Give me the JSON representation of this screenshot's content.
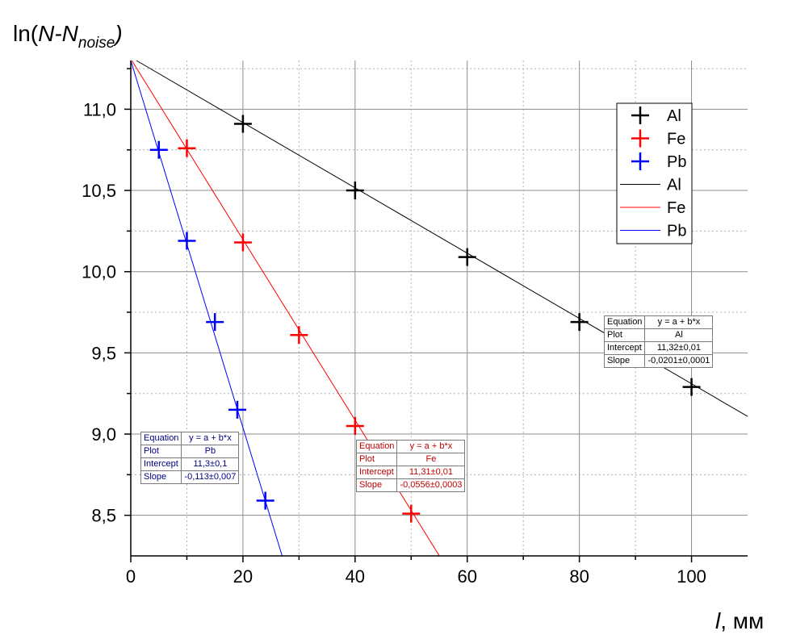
{
  "chart_data": {
    "type": "scatter",
    "ylabel_parts": {
      "main": "ln(",
      "n": "N",
      "dash": "-N",
      "sub": "noise",
      "close": ")"
    },
    "xlabel_parts": {
      "var": "l",
      "unit": ", мм"
    },
    "xlim": [
      0,
      110
    ],
    "ylim": [
      8.25,
      11.3
    ],
    "xticks": [
      0,
      20,
      40,
      60,
      80,
      100
    ],
    "xtick_labels": [
      "0",
      "20",
      "40",
      "60",
      "80",
      "100"
    ],
    "yticks": [
      8.5,
      9.0,
      9.5,
      10.0,
      10.5,
      11.0
    ],
    "ytick_labels": [
      "8,5",
      "9,0",
      "9,5",
      "10,0",
      "10,5",
      "11,0"
    ],
    "grid": true,
    "legend_position": "top-right",
    "series": [
      {
        "name": "Al",
        "color": "#000000",
        "x": [
          20,
          40,
          60,
          80,
          100
        ],
        "y": [
          10.91,
          10.5,
          10.09,
          9.69,
          9.29
        ]
      },
      {
        "name": "Fe",
        "color": "#ff0000",
        "x": [
          10,
          20,
          30,
          40,
          50
        ],
        "y": [
          10.76,
          10.18,
          9.61,
          9.05,
          8.51
        ]
      },
      {
        "name": "Pb",
        "color": "#0000ff",
        "x": [
          5,
          10,
          15,
          19,
          24
        ],
        "y": [
          10.75,
          10.19,
          9.69,
          9.15,
          8.59
        ]
      }
    ],
    "fits": [
      {
        "name": "Al",
        "color": "#000000",
        "intercept": 11.32,
        "slope": -0.0201
      },
      {
        "name": "Fe",
        "color": "#ff0000",
        "intercept": 11.31,
        "slope": -0.0556
      },
      {
        "name": "Pb",
        "color": "#0000ff",
        "intercept": 11.3,
        "slope": -0.113
      }
    ],
    "fit_tables": [
      {
        "key": "pb",
        "color": "#000080",
        "rows": [
          {
            "label": "Equation",
            "value": "y = a + b*x"
          },
          {
            "label": "Plot",
            "value": "Pb"
          },
          {
            "label": "Intercept",
            "value": "11,3±0,1"
          },
          {
            "label": "Slope",
            "value": "-0,113±0,007"
          }
        ]
      },
      {
        "key": "fe",
        "color": "#c00000",
        "rows": [
          {
            "label": "Equation",
            "value": "y = a + b*x"
          },
          {
            "label": "Plot",
            "value": "Fe"
          },
          {
            "label": "Intercept",
            "value": "11,31±0,01"
          },
          {
            "label": "Slope",
            "value": "-0,0556±0,0003"
          }
        ]
      },
      {
        "key": "al",
        "color": "#000000",
        "rows": [
          {
            "label": "Equation",
            "value": "y = a + b*x"
          },
          {
            "label": "Plot",
            "value": "Al"
          },
          {
            "label": "Intercept",
            "value": "11,32±0,01"
          },
          {
            "label": "Slope",
            "value": "-0,0201±0,0001"
          }
        ]
      }
    ]
  }
}
